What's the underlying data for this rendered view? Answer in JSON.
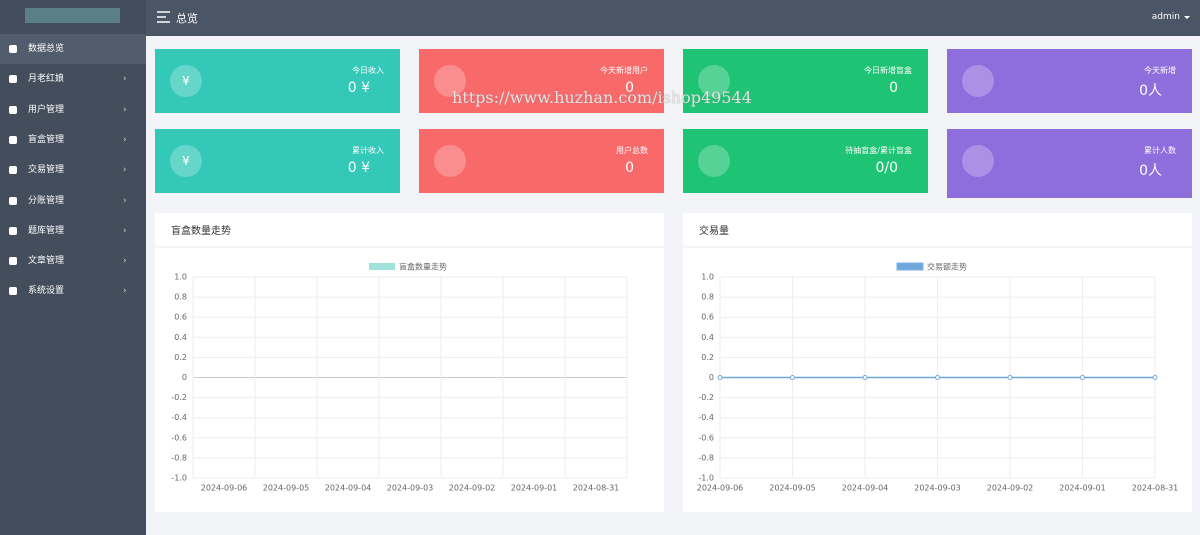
{
  "header": {
    "title": "总览",
    "user": "admin"
  },
  "sidebar": {
    "items": [
      "数据总览",
      "月老红娘",
      "用户管理",
      "盲盒管理",
      "交易管理",
      "分账管理",
      "题库管理",
      "文章管理",
      "系统设置"
    ]
  },
  "cards": [
    {
      "label": "今日收入",
      "value": "0 ¥",
      "color": "#34c8b9",
      "glyph": "¥"
    },
    {
      "label": "今天新增用户",
      "value": "0",
      "color": "#f8696a",
      "glyph": ""
    },
    {
      "label": "今日新增盲盒",
      "value": "0",
      "color": "#1fc374",
      "glyph": ""
    },
    {
      "label": "今天新增",
      "value": "0人",
      "color": "#8e6ddc",
      "glyph": ""
    },
    {
      "label": "累计收入",
      "value": "0 ¥",
      "color": "#34c8b9",
      "glyph": "¥"
    },
    {
      "label": "用户总数",
      "value": "0",
      "color": "#f8696a",
      "glyph": ""
    },
    {
      "label": "待抽盲盒/累计盲盒",
      "value": "0/0",
      "color": "#1fc374",
      "glyph": ""
    },
    {
      "label": "累计人数",
      "value": "0人",
      "color": "#8e6ddc",
      "glyph": ""
    }
  ],
  "watermark": "https://www.huzhan.com/ishop49544",
  "chart_data": [
    {
      "type": "bar",
      "title": "盲盒数量走势",
      "categories": [
        "2024-09-06",
        "2024-09-05",
        "2024-09-04",
        "2024-09-03",
        "2024-09-02",
        "2024-09-01",
        "2024-08-31"
      ],
      "series": [
        {
          "name": "盲盒数量走势",
          "color": "#9fe3da",
          "values": [
            0,
            0,
            0,
            0,
            0,
            0,
            0
          ]
        }
      ],
      "ylim": [
        -1,
        1
      ],
      "yticks": [
        {
          "value": 1,
          "label": "1.0"
        },
        0.8,
        0.6,
        0.4,
        0.2,
        0,
        -0.2,
        -0.4,
        -0.6,
        -0.8,
        {
          "value": -1,
          "label": "-1.0"
        }
      ],
      "grid": true
    },
    {
      "type": "line",
      "title": "交易量",
      "categories": [
        "2024-09-06",
        "2024-09-05",
        "2024-09-04",
        "2024-09-03",
        "2024-09-02",
        "2024-09-01",
        "2024-08-31"
      ],
      "series": [
        {
          "name": "交易额走势",
          "color": "#6fa8dc",
          "values": [
            0,
            0,
            0,
            0,
            0,
            0,
            0
          ]
        }
      ],
      "ylim": [
        -1,
        1
      ],
      "yticks": [
        {
          "value": 1,
          "label": "1.0"
        },
        0.8,
        0.6,
        0.4,
        0.2,
        0,
        -0.2,
        -0.4,
        -0.6,
        -0.8,
        {
          "value": -1,
          "label": "-1.0"
        }
      ],
      "grid": true
    }
  ]
}
